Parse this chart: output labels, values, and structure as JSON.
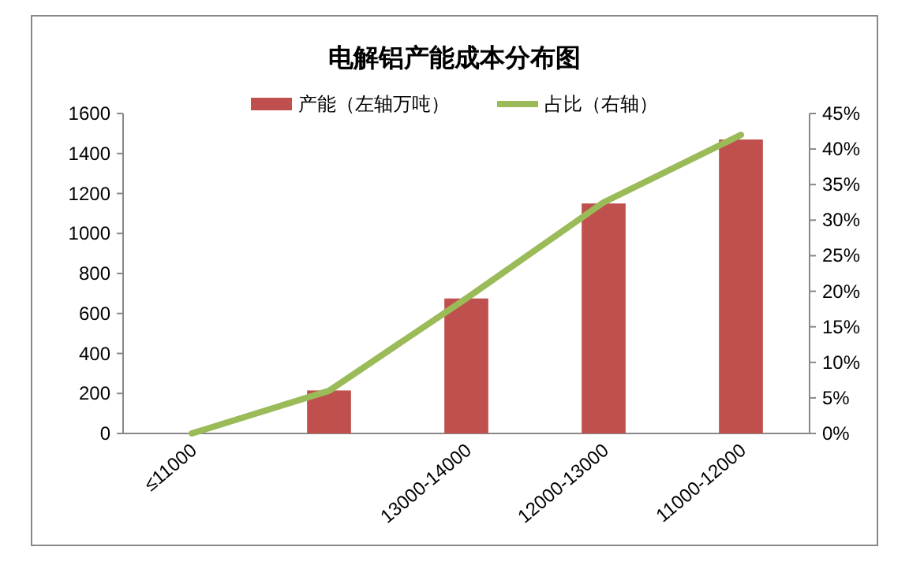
{
  "chart_data": {
    "type": "bar",
    "title": "电解铝产能成本分布图",
    "categories": [
      "≤11000",
      null,
      "13000-14000",
      "12000-13000",
      "11000-12000"
    ],
    "series": [
      {
        "name": "产能（左轴万吨）",
        "color": "#c0504d",
        "values": [
          0,
          215,
          675,
          1150,
          1470
        ]
      },
      {
        "name": "占比（右轴）",
        "type": "line",
        "axis": "y2",
        "color": "#9bbb59",
        "values": [
          0,
          6,
          19,
          32.5,
          42
        ]
      }
    ],
    "ylim": [
      0,
      1600
    ],
    "yticks": [
      0,
      200,
      400,
      600,
      800,
      1000,
      1200,
      1400,
      1600
    ],
    "y2lim": [
      0,
      45
    ],
    "y2ticks": [
      {
        "value": 0,
        "label": "0%"
      },
      {
        "value": 5,
        "label": "5%"
      },
      {
        "value": 10,
        "label": "10%"
      },
      {
        "value": 15,
        "label": "15%"
      },
      {
        "value": 20,
        "label": "20%"
      },
      {
        "value": 25,
        "label": "25%"
      },
      {
        "value": 30,
        "label": "30%"
      },
      {
        "value": 35,
        "label": "35%"
      },
      {
        "value": 40,
        "label": "40%"
      },
      {
        "value": 45,
        "label": "45%"
      }
    ],
    "legend": "top",
    "grid": false
  }
}
